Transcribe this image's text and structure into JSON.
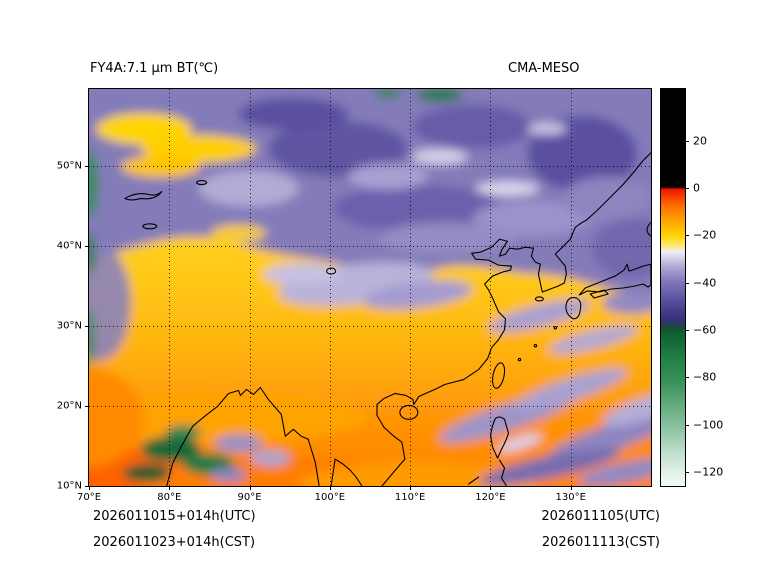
{
  "header": {
    "title_left": "FY4A:7.1 μm BT(℃)",
    "title_right": "CMA-MESO"
  },
  "footer": {
    "left_line1": "2026011015+014h(UTC)",
    "left_line2": "2026011023+014h(CST)",
    "right_line1": "2026011105(UTC)",
    "right_line2": "2026011113(CST)"
  },
  "chart_data": {
    "type": "heatmap",
    "title": "FY4A:7.1 μm BT(℃)",
    "model_label": "CMA-MESO",
    "variable": "FY-4A 7.1 um water-vapour channel brightness temperature (deg C), CMA-MESO model field",
    "lon_range": [
      70,
      140
    ],
    "lat_range": [
      10,
      59.6
    ],
    "x_ticks": [
      {
        "value": 70,
        "label": "70°E"
      },
      {
        "value": 80,
        "label": "80°E"
      },
      {
        "value": 90,
        "label": "90°E"
      },
      {
        "value": 100,
        "label": "100°E"
      },
      {
        "value": 110,
        "label": "110°E"
      },
      {
        "value": 120,
        "label": "120°E"
      },
      {
        "value": 130,
        "label": "130°E"
      }
    ],
    "y_ticks": [
      {
        "value": 10,
        "label": "10°N"
      },
      {
        "value": 20,
        "label": "20°N"
      },
      {
        "value": 30,
        "label": "30°N"
      },
      {
        "value": 40,
        "label": "40°N"
      },
      {
        "value": 50,
        "label": "50°N"
      }
    ],
    "grid": "black dotted lines every 10 degrees",
    "colorbar": {
      "vmin": -126,
      "vmax": 42,
      "ticks": [
        {
          "value": 20,
          "label": "20"
        },
        {
          "value": 0,
          "label": "0"
        },
        {
          "value": -20,
          "label": "−20"
        },
        {
          "value": -40,
          "label": "−40"
        },
        {
          "value": -60,
          "label": "−60"
        },
        {
          "value": -80,
          "label": "−80"
        },
        {
          "value": -100,
          "label": "−100"
        },
        {
          "value": -120,
          "label": "−120"
        }
      ],
      "stops": [
        {
          "value": 42,
          "color": "#000000"
        },
        {
          "value": 0.5,
          "color": "#000000"
        },
        {
          "value": -0.5,
          "color": "#f21500"
        },
        {
          "value": -7,
          "color": "#ff6a00"
        },
        {
          "value": -14,
          "color": "#ffa600"
        },
        {
          "value": -20,
          "color": "#ffd300"
        },
        {
          "value": -24,
          "color": "#ffe96e"
        },
        {
          "value": -27,
          "color": "#eeedf5"
        },
        {
          "value": -33,
          "color": "#b2aad6"
        },
        {
          "value": -40,
          "color": "#7d74b5"
        },
        {
          "value": -48,
          "color": "#564d9c"
        },
        {
          "value": -56,
          "color": "#352e78"
        },
        {
          "value": -59,
          "color": "#174f33"
        },
        {
          "value": -62,
          "color": "#0e6333"
        },
        {
          "value": -72,
          "color": "#218044"
        },
        {
          "value": -82,
          "color": "#389257"
        },
        {
          "value": -92,
          "color": "#64ac80"
        },
        {
          "value": -102,
          "color": "#8ec4a4"
        },
        {
          "value": -112,
          "color": "#c0dfcd"
        },
        {
          "value": -122,
          "color": "#e8f5ee"
        },
        {
          "value": -126,
          "color": "#f2faf6"
        }
      ]
    },
    "regions": [
      {
        "area": "north of ~40°N, 70–140°E",
        "bt_c": "-35 to -55",
        "appearance": "slate-purple moist upper-level air with darker purple and pale lavender swirls"
      },
      {
        "area": "band ~20–40°N across map",
        "bt_c": "-10 to -25",
        "appearance": "yellow-orange dry slot (warm BT)"
      },
      {
        "area": "south of 20°N, 70–105°E",
        "bt_c": "-5 to -15",
        "appearance": "deep orange, warmest BT"
      },
      {
        "area": "NE India / Bangladesh ~18–26°N, 78–95°E",
        "bt_c": "-60 to -90",
        "appearance": "dark green cold convective cloud tops with lavender fringes"
      },
      {
        "area": "South China Sea / Philippine Sea, 10–25°N east of 105°E",
        "bt_c": "-35 to -55",
        "appearance": "NE–SW oriented lavender/purple cloud streaks"
      },
      {
        "area": "central China plateau ~32–36°N, 92–110°E",
        "bt_c": "-30 to -40",
        "appearance": "pale grey-lavender tongue embedded in yellow band"
      }
    ]
  }
}
